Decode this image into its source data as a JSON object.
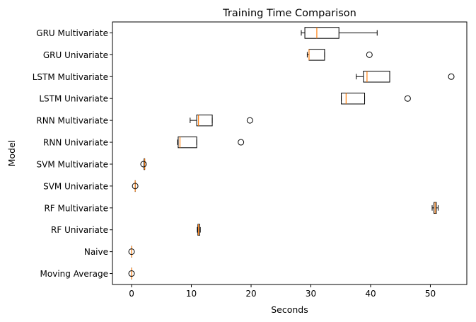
{
  "chart_data": {
    "type": "boxplot",
    "orientation": "horizontal",
    "title": "Training Time Comparison",
    "xlabel": "Seconds",
    "ylabel": "Model",
    "xlim": [
      -3.2,
      56.1
    ],
    "xticks": [
      0,
      10,
      20,
      30,
      40,
      50
    ],
    "grid": false,
    "categories": [
      "Moving Average",
      "Naive",
      "RF Univariate",
      "RF Multivariate",
      "SVM Univariate",
      "SVM Multivariate",
      "RNN Univariate",
      "RNN Multivariate",
      "LSTM Univariate",
      "LSTM Multivariate",
      "GRU Univariate",
      "GRU Multivariate"
    ],
    "boxes": [
      {
        "label": "Moving Average",
        "whislo": 0.0,
        "q1": 0.0,
        "med": 0.0,
        "q3": 0.0,
        "whishi": 0.0,
        "fliers": [
          0.0
        ]
      },
      {
        "label": "Naive",
        "whislo": 0.0,
        "q1": 0.0,
        "med": 0.0,
        "q3": 0.0,
        "whishi": 0.0,
        "fliers": [
          0.0
        ]
      },
      {
        "label": "RF Univariate",
        "whislo": 11.0,
        "q1": 11.1,
        "med": 11.2,
        "q3": 11.4,
        "whishi": 11.5,
        "fliers": []
      },
      {
        "label": "RF Multivariate",
        "whislo": 50.3,
        "q1": 50.6,
        "med": 50.8,
        "q3": 51.0,
        "whishi": 51.3,
        "fliers": []
      },
      {
        "label": "SVM Univariate",
        "whislo": 0.6,
        "q1": 0.6,
        "med": 0.6,
        "q3": 0.6,
        "whishi": 0.6,
        "fliers": [
          0.6
        ]
      },
      {
        "label": "SVM Multivariate",
        "whislo": 2.1,
        "q1": 2.1,
        "med": 2.2,
        "q3": 2.2,
        "whishi": 2.2,
        "fliers": [
          2.0
        ]
      },
      {
        "label": "RNN Univariate",
        "whislo": 7.7,
        "q1": 7.8,
        "med": 8.1,
        "q3": 10.9,
        "whishi": 10.9,
        "fliers": [
          18.3
        ]
      },
      {
        "label": "RNN Multivariate",
        "whislo": 9.8,
        "q1": 10.9,
        "med": 11.2,
        "q3": 13.5,
        "whishi": 13.5,
        "fliers": [
          19.8
        ]
      },
      {
        "label": "LSTM Univariate",
        "whislo": 35.1,
        "q1": 35.1,
        "med": 35.9,
        "q3": 39.0,
        "whishi": 39.0,
        "fliers": [
          46.2
        ]
      },
      {
        "label": "LSTM Multivariate",
        "whislo": 37.6,
        "q1": 38.8,
        "med": 39.4,
        "q3": 43.2,
        "whishi": 43.2,
        "fliers": [
          53.5
        ]
      },
      {
        "label": "GRU Univariate",
        "whislo": 29.4,
        "q1": 29.7,
        "med": 29.7,
        "q3": 32.3,
        "whishi": 32.3,
        "fliers": [
          39.8
        ]
      },
      {
        "label": "GRU Multivariate",
        "whislo": 28.4,
        "q1": 29.0,
        "med": 31.0,
        "q3": 34.7,
        "whishi": 41.1,
        "fliers": []
      }
    ],
    "colors": {
      "box": "#000000",
      "median": "#ff7f0e",
      "flier_edge": "#000000",
      "background": "#ffffff"
    }
  }
}
